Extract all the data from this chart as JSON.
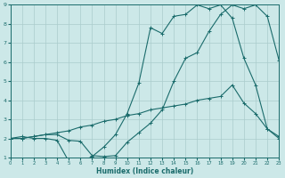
{
  "xlabel": "Humidex (Indice chaleur)",
  "xlim": [
    0,
    23
  ],
  "ylim": [
    1,
    9
  ],
  "xticks": [
    0,
    1,
    2,
    3,
    4,
    5,
    6,
    7,
    8,
    9,
    10,
    11,
    12,
    13,
    14,
    15,
    16,
    17,
    18,
    19,
    20,
    21,
    22,
    23
  ],
  "yticks": [
    1,
    2,
    3,
    4,
    5,
    6,
    7,
    8,
    9
  ],
  "bg_color": "#cce8e8",
  "grid_color": "#aacccc",
  "line_color": "#1a6b6b",
  "line1_x": [
    0,
    1,
    2,
    3,
    4,
    5,
    6,
    7,
    8,
    9,
    10,
    11,
    12,
    13,
    14,
    15,
    16,
    17,
    18,
    19,
    20,
    21,
    22,
    23
  ],
  "line1_y": [
    2.0,
    2.1,
    2.0,
    2.0,
    1.9,
    0.8,
    0.75,
    1.05,
    1.55,
    2.2,
    3.3,
    4.9,
    7.8,
    7.5,
    8.4,
    8.5,
    9.0,
    8.8,
    9.0,
    8.3,
    6.2,
    4.8,
    2.5,
    2.0
  ],
  "line2_x": [
    0,
    1,
    2,
    3,
    4,
    5,
    6,
    7,
    8,
    9,
    10,
    11,
    12,
    13,
    14,
    15,
    16,
    17,
    18,
    19,
    20,
    21,
    22,
    23
  ],
  "line2_y": [
    2.0,
    2.0,
    2.1,
    2.2,
    2.2,
    1.9,
    1.85,
    1.1,
    1.05,
    1.1,
    1.8,
    2.3,
    2.8,
    3.5,
    5.0,
    6.2,
    6.5,
    7.6,
    8.5,
    9.0,
    8.8,
    9.0,
    8.4,
    6.1
  ],
  "line3_x": [
    0,
    1,
    2,
    3,
    4,
    5,
    6,
    7,
    8,
    9,
    10,
    11,
    12,
    13,
    14,
    15,
    16,
    17,
    18,
    19,
    20,
    21,
    22,
    23
  ],
  "line3_y": [
    2.0,
    2.0,
    2.1,
    2.2,
    2.3,
    2.4,
    2.6,
    2.7,
    2.9,
    3.0,
    3.2,
    3.3,
    3.5,
    3.6,
    3.7,
    3.8,
    4.0,
    4.1,
    4.2,
    4.8,
    3.85,
    3.3,
    2.5,
    2.1
  ]
}
